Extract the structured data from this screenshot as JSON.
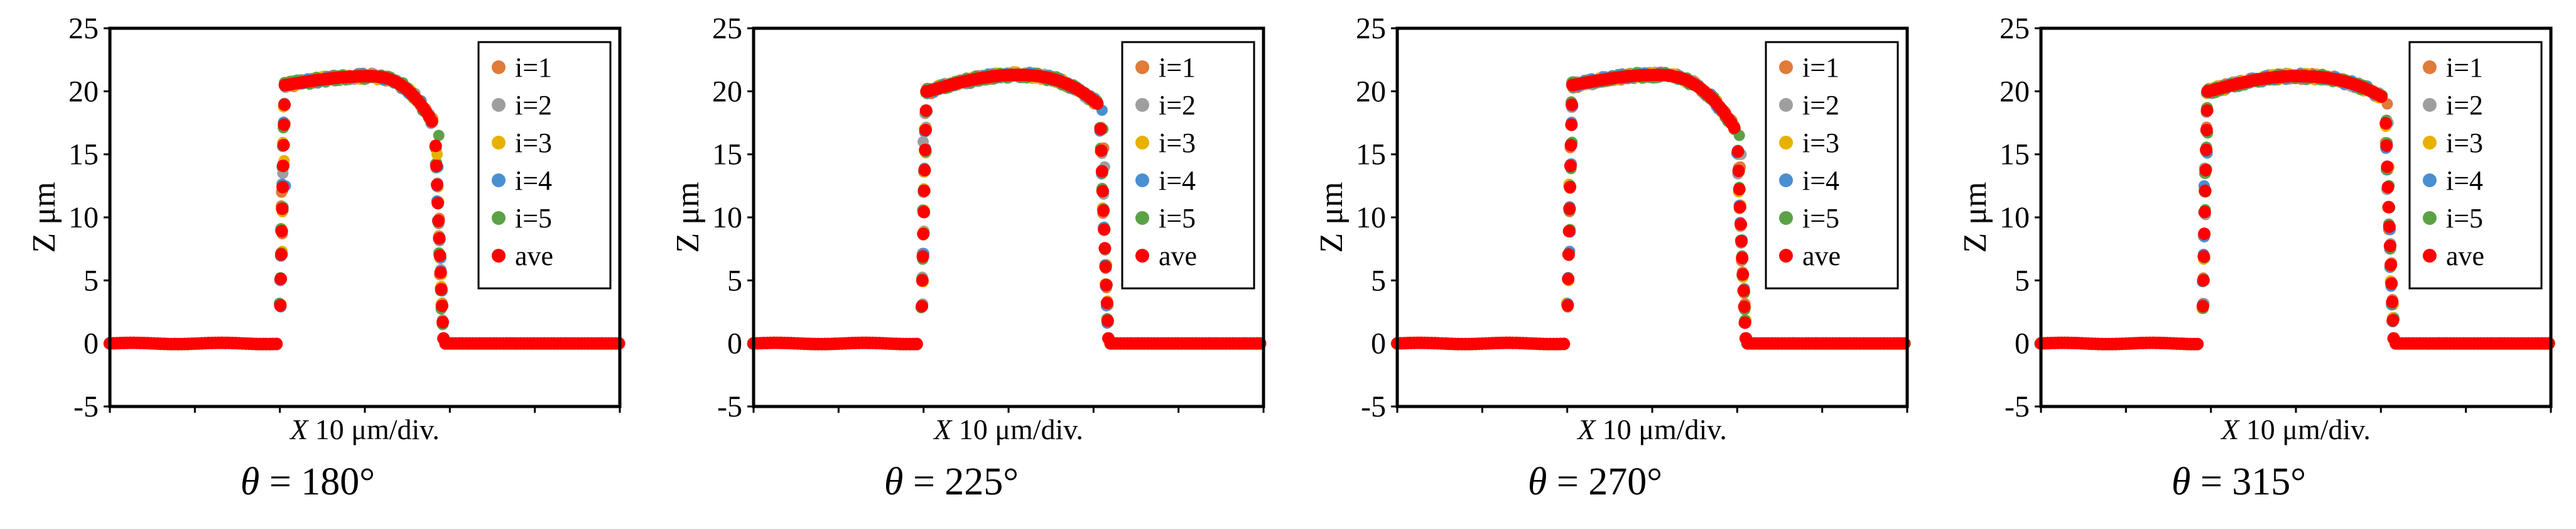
{
  "figure_title": "",
  "chart_data": [
    {
      "type": "scatter",
      "title": "",
      "caption_symbol": "θ",
      "caption_value": "= 180°",
      "xlabel_var": "X",
      "xlabel_unit": "10 μm/div.",
      "ylabel": "Z μm",
      "ylim": [
        -5,
        25
      ],
      "yticks": [
        "25",
        "20",
        "15",
        "10",
        "5",
        "0",
        "-5"
      ],
      "xlim": [
        0,
        12
      ],
      "x_divisions": 6,
      "grid": false,
      "legend_position": "top-right",
      "legend": [
        "i=1",
        "i=2",
        "i=3",
        "i=4",
        "i=5",
        "ave"
      ],
      "series_colors": {
        "i=1": "#E07B39",
        "i=2": "#9E9E9E",
        "i=3": "#E8B100",
        "i=4": "#4A8FD0",
        "i=5": "#5BA245",
        "ave": "#FF0000"
      },
      "profile": {
        "baseline": 0.0,
        "rise_x": 4.0,
        "top_left_level": 20.5,
        "plateau_peak": 21.2,
        "peak_x": 6.1,
        "right_shoulder_level": 17.5,
        "fall_x": 7.65,
        "end_x": 12.0,
        "left_edge_scatter": [
          12.0,
          13.5,
          14.5,
          12.5
        ],
        "right_edge_scatter": [
          15.0,
          14.0,
          16.5
        ]
      }
    },
    {
      "type": "scatter",
      "title": "",
      "caption_symbol": "θ",
      "caption_value": "= 225°",
      "xlabel_var": "X",
      "xlabel_unit": "10 μm/div.",
      "ylabel": "Z μm",
      "ylim": [
        -5,
        25
      ],
      "yticks": [
        "25",
        "20",
        "15",
        "10",
        "5",
        "0",
        "-5"
      ],
      "xlim": [
        0,
        12
      ],
      "x_divisions": 6,
      "grid": false,
      "legend_position": "top-right",
      "legend": [
        "i=1",
        "i=2",
        "i=3",
        "i=4",
        "i=5",
        "ave"
      ],
      "series_colors": {
        "i=1": "#E07B39",
        "i=2": "#9E9E9E",
        "i=3": "#E8B100",
        "i=4": "#4A8FD0",
        "i=5": "#5BA245",
        "ave": "#FF0000"
      },
      "profile": {
        "baseline": 0.0,
        "rise_x": 3.95,
        "top_left_level": 20.0,
        "plateau_peak": 21.3,
        "peak_x": 6.2,
        "right_shoulder_level": 19.0,
        "fall_x": 8.15,
        "end_x": 12.0,
        "left_edge_scatter": [
          16.0,
          17.0
        ],
        "right_edge_scatter": [
          18.5,
          17.0,
          15.5,
          14.0
        ]
      }
    },
    {
      "type": "scatter",
      "title": "",
      "caption_symbol": "θ",
      "caption_value": "= 270°",
      "xlabel_var": "X",
      "xlabel_unit": "10 μm/div.",
      "ylabel": "Z μm",
      "ylim": [
        -5,
        25
      ],
      "yticks": [
        "25",
        "20",
        "15",
        "10",
        "5",
        "0",
        "-5"
      ],
      "xlim": [
        0,
        12
      ],
      "x_divisions": 6,
      "grid": false,
      "legend_position": "top-right",
      "legend": [
        "i=1",
        "i=2",
        "i=3",
        "i=4",
        "i=5",
        "ave"
      ],
      "series_colors": {
        "i=1": "#E07B39",
        "i=2": "#9E9E9E",
        "i=3": "#E8B100",
        "i=4": "#4A8FD0",
        "i=5": "#5BA245",
        "ave": "#FF0000"
      },
      "profile": {
        "baseline": 0.0,
        "rise_x": 4.0,
        "top_left_level": 20.5,
        "plateau_peak": 21.3,
        "peak_x": 6.1,
        "right_shoulder_level": 17.0,
        "fall_x": 8.0,
        "end_x": 12.0,
        "left_edge_scatter": [
          12.5
        ],
        "right_edge_scatter": [
          16.5,
          14.0,
          15.0
        ]
      }
    },
    {
      "type": "scatter",
      "title": "",
      "caption_symbol": "θ",
      "caption_value": "= 315°",
      "xlabel_var": "X",
      "xlabel_unit": "10 μm/div.",
      "ylabel": "Z μm",
      "ylim": [
        -5,
        25
      ],
      "yticks": [
        "25",
        "20",
        "15",
        "10",
        "5",
        "0",
        "-5"
      ],
      "xlim": [
        0,
        12
      ],
      "x_divisions": 6,
      "grid": false,
      "legend_position": "top-right",
      "legend": [
        "i=1",
        "i=2",
        "i=3",
        "i=4",
        "i=5",
        "ave"
      ],
      "series_colors": {
        "i=1": "#E07B39",
        "i=2": "#9E9E9E",
        "i=3": "#E8B100",
        "i=4": "#4A8FD0",
        "i=5": "#5BA245",
        "ave": "#FF0000"
      },
      "profile": {
        "baseline": 0.0,
        "rise_x": 3.8,
        "top_left_level": 20.0,
        "plateau_peak": 21.2,
        "peak_x": 6.0,
        "right_shoulder_level": 19.5,
        "fall_x": 8.1,
        "end_x": 12.0,
        "left_edge_scatter": [
          12.5,
          13.5
        ],
        "right_edge_scatter": [
          19.0,
          17.5,
          14.0
        ]
      }
    }
  ]
}
